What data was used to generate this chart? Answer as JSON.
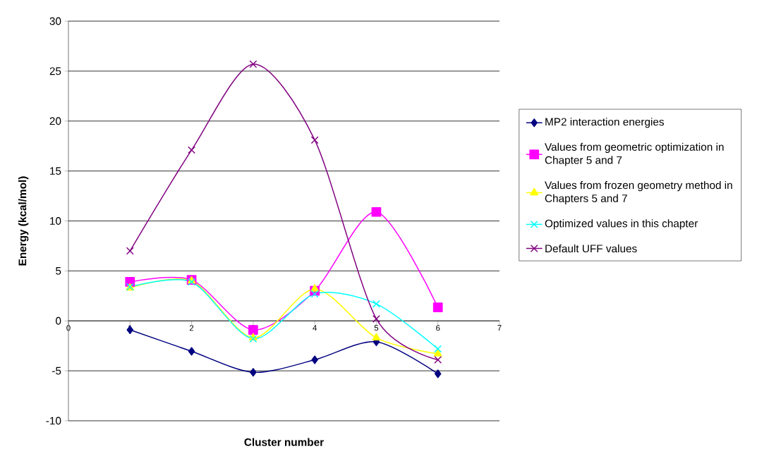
{
  "chart_data": {
    "type": "line",
    "xlabel": "Cluster number",
    "ylabel": "Energy (kcal/mol)",
    "x": [
      1,
      2,
      3,
      4,
      5,
      6
    ],
    "xlim": [
      0,
      7
    ],
    "xticks": [
      0,
      1,
      2,
      3,
      4,
      5,
      6,
      7
    ],
    "ylim": [
      -10,
      30
    ],
    "yticks": [
      -10,
      -5,
      0,
      5,
      10,
      15,
      20,
      25,
      30
    ],
    "grid": "y",
    "legend": "right",
    "series": [
      {
        "name": "MP2 interaction energies",
        "color": "#000080",
        "marker": "diamond",
        "values": [
          -0.9,
          -3.05,
          -5.15,
          -3.9,
          -2.1,
          -5.3
        ]
      },
      {
        "name": "Values from geometric optimization in Chapter 5 and 7",
        "color": "#ff00ff",
        "marker": "square",
        "values": [
          3.9,
          4.1,
          -0.9,
          3.0,
          10.9,
          1.35
        ]
      },
      {
        "name": "Values from frozen geometry method in Chapters 5 and 7",
        "color": "#ffff00",
        "marker": "triangle",
        "values": [
          3.3,
          4.0,
          -1.7,
          3.2,
          -1.7,
          -3.3
        ]
      },
      {
        "name": "Optimized values in this chapter",
        "color": "#00ffff",
        "marker": "cross",
        "values": [
          3.4,
          3.9,
          -1.8,
          2.7,
          1.7,
          -2.8
        ]
      },
      {
        "name": "Default UFF values",
        "color": "#800080",
        "marker": "cross",
        "values": [
          7.0,
          17.1,
          25.7,
          18.1,
          0.2,
          -3.9
        ]
      }
    ]
  }
}
